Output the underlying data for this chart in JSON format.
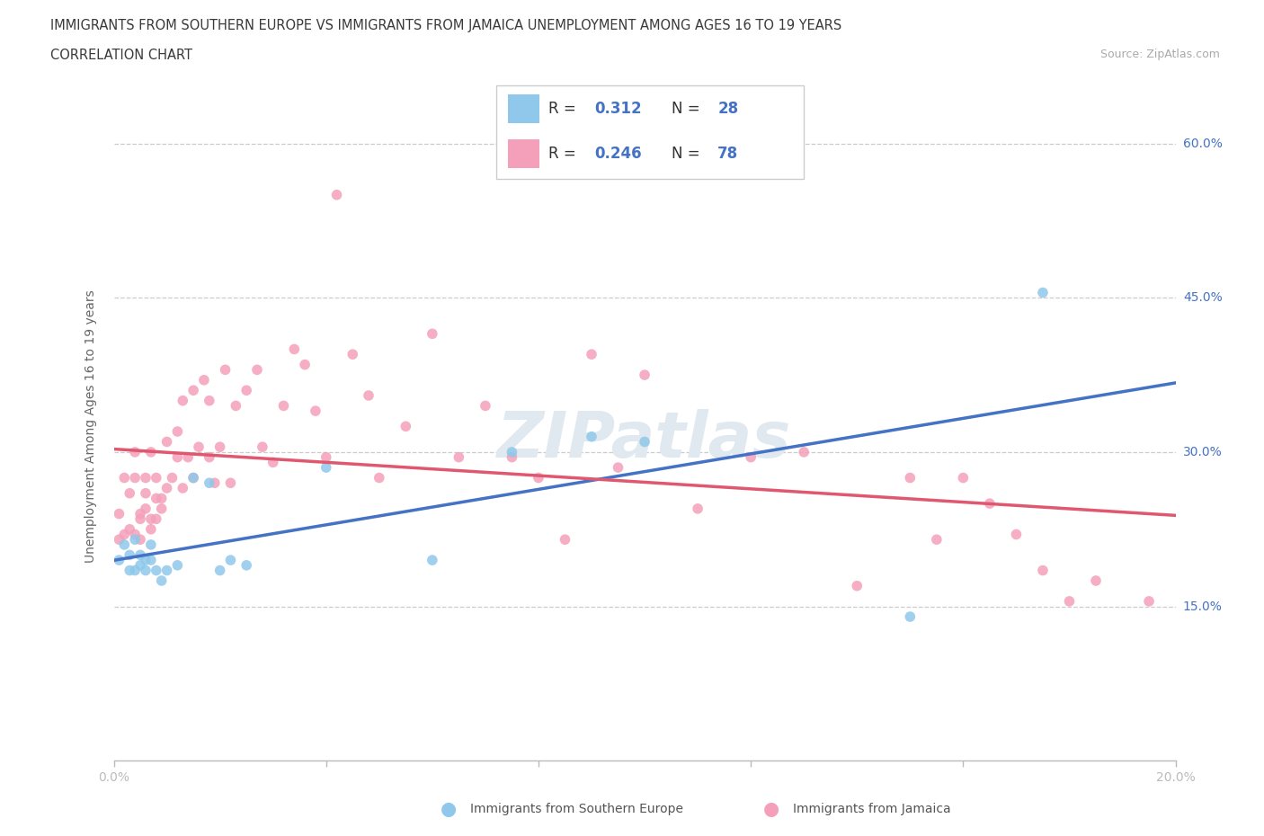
{
  "title_line1": "IMMIGRANTS FROM SOUTHERN EUROPE VS IMMIGRANTS FROM JAMAICA UNEMPLOYMENT AMONG AGES 16 TO 19 YEARS",
  "title_line2": "CORRELATION CHART",
  "source": "Source: ZipAtlas.com",
  "ylabel": "Unemployment Among Ages 16 to 19 years",
  "xlim": [
    0.0,
    0.2
  ],
  "ylim": [
    0.0,
    0.65
  ],
  "yticks": [
    0.15,
    0.3,
    0.45,
    0.6
  ],
  "ytick_labels": [
    "15.0%",
    "30.0%",
    "45.0%",
    "60.0%"
  ],
  "xticks": [
    0.0,
    0.04,
    0.08,
    0.12,
    0.16,
    0.2
  ],
  "xtick_labels": [
    "0.0%",
    "",
    "",
    "",
    "",
    "20.0%"
  ],
  "blue_R": "0.312",
  "blue_N": "28",
  "pink_R": "0.246",
  "pink_N": "78",
  "blue_color": "#8FC8EA",
  "pink_color": "#F4A0BA",
  "blue_line_color": "#4472C4",
  "pink_line_color": "#E05870",
  "legend_label_blue": "Immigrants from Southern Europe",
  "legend_label_pink": "Immigrants from Jamaica",
  "blue_scatter_x": [
    0.001,
    0.002,
    0.003,
    0.003,
    0.004,
    0.004,
    0.005,
    0.005,
    0.006,
    0.006,
    0.007,
    0.007,
    0.008,
    0.009,
    0.01,
    0.012,
    0.015,
    0.018,
    0.02,
    0.022,
    0.025,
    0.04,
    0.06,
    0.075,
    0.09,
    0.1,
    0.15,
    0.175
  ],
  "blue_scatter_y": [
    0.195,
    0.21,
    0.2,
    0.185,
    0.185,
    0.215,
    0.19,
    0.2,
    0.195,
    0.185,
    0.21,
    0.195,
    0.185,
    0.175,
    0.185,
    0.19,
    0.275,
    0.27,
    0.185,
    0.195,
    0.19,
    0.285,
    0.195,
    0.3,
    0.315,
    0.31,
    0.14,
    0.455
  ],
  "pink_scatter_x": [
    0.001,
    0.001,
    0.002,
    0.002,
    0.003,
    0.003,
    0.004,
    0.004,
    0.004,
    0.005,
    0.005,
    0.005,
    0.006,
    0.006,
    0.006,
    0.007,
    0.007,
    0.007,
    0.008,
    0.008,
    0.008,
    0.009,
    0.009,
    0.01,
    0.01,
    0.011,
    0.012,
    0.012,
    0.013,
    0.013,
    0.014,
    0.015,
    0.015,
    0.016,
    0.017,
    0.018,
    0.018,
    0.019,
    0.02,
    0.021,
    0.022,
    0.023,
    0.025,
    0.027,
    0.028,
    0.03,
    0.032,
    0.034,
    0.036,
    0.038,
    0.04,
    0.042,
    0.045,
    0.048,
    0.05,
    0.055,
    0.06,
    0.065,
    0.07,
    0.075,
    0.08,
    0.085,
    0.09,
    0.095,
    0.1,
    0.11,
    0.12,
    0.13,
    0.14,
    0.15,
    0.155,
    0.16,
    0.165,
    0.17,
    0.175,
    0.18,
    0.185,
    0.195
  ],
  "pink_scatter_y": [
    0.215,
    0.24,
    0.22,
    0.275,
    0.225,
    0.26,
    0.22,
    0.275,
    0.3,
    0.235,
    0.24,
    0.215,
    0.245,
    0.26,
    0.275,
    0.225,
    0.235,
    0.3,
    0.235,
    0.255,
    0.275,
    0.255,
    0.245,
    0.265,
    0.31,
    0.275,
    0.295,
    0.32,
    0.265,
    0.35,
    0.295,
    0.36,
    0.275,
    0.305,
    0.37,
    0.35,
    0.295,
    0.27,
    0.305,
    0.38,
    0.27,
    0.345,
    0.36,
    0.38,
    0.305,
    0.29,
    0.345,
    0.4,
    0.385,
    0.34,
    0.295,
    0.55,
    0.395,
    0.355,
    0.275,
    0.325,
    0.415,
    0.295,
    0.345,
    0.295,
    0.275,
    0.215,
    0.395,
    0.285,
    0.375,
    0.245,
    0.295,
    0.3,
    0.17,
    0.275,
    0.215,
    0.275,
    0.25,
    0.22,
    0.185,
    0.155,
    0.175,
    0.155
  ]
}
